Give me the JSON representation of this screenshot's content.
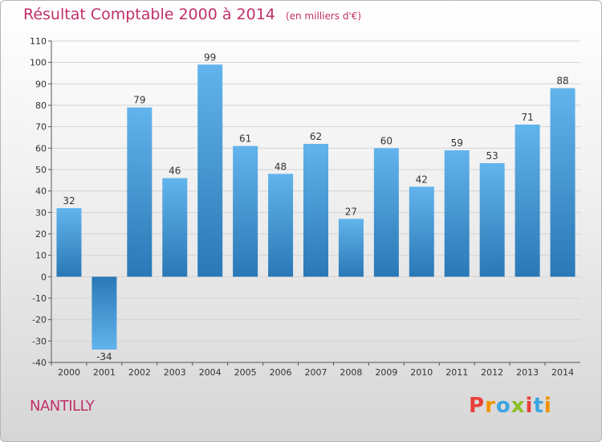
{
  "title": "Résultat Comptable 2000 à 2014",
  "unit": "(en milliers d'€)",
  "town": "NANTILLY",
  "logo": {
    "text": "Proxiti",
    "letters": [
      {
        "ch": "P",
        "color": "#e8403b"
      },
      {
        "ch": "r",
        "color": "#f39200"
      },
      {
        "ch": "o",
        "color": "#3ba6e0"
      },
      {
        "ch": "x",
        "color": "#8cbf26"
      },
      {
        "ch": "i",
        "color": "#e8403b"
      },
      {
        "ch": "t",
        "color": "#3ba6e0"
      },
      {
        "ch": "i",
        "color": "#f39200"
      }
    ]
  },
  "colors": {
    "title": "#c0306b",
    "bar_light": "#62b4ec",
    "bar_dark": "#2a78b6",
    "grid": "#d3d3d3",
    "axis": "#555555"
  },
  "chart_data": {
    "type": "bar",
    "title": "Résultat Comptable 2000 à 2014",
    "subtitle": "(en milliers d'€)",
    "xlabel": "",
    "ylabel": "",
    "categories": [
      "2000",
      "2001",
      "2002",
      "2003",
      "2004",
      "2005",
      "2006",
      "2007",
      "2008",
      "2009",
      "2010",
      "2011",
      "2012",
      "2013",
      "2014"
    ],
    "values": [
      32,
      -34,
      79,
      46,
      99,
      61,
      48,
      62,
      27,
      60,
      42,
      59,
      53,
      71,
      88
    ],
    "ylim": [
      -40,
      110
    ],
    "yticks": [
      -40,
      -30,
      -20,
      -10,
      0,
      10,
      20,
      30,
      40,
      50,
      60,
      70,
      80,
      90,
      100,
      110
    ],
    "grid": true
  }
}
